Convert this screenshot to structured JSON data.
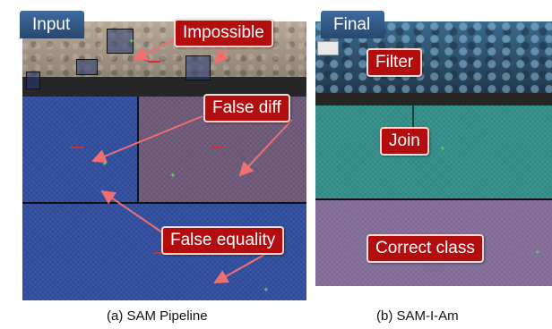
{
  "panels": {
    "a": {
      "tab": "Input",
      "caption": "(a) SAM Pipeline"
    },
    "b": {
      "tab": "Final",
      "caption": "(b) SAM-I-Am"
    }
  },
  "annotations": {
    "impossible": "Impossible",
    "false_diff": "False diff",
    "false_equality": "False equality",
    "filter": "Filter",
    "join": "Join",
    "correct_class": "Correct class"
  },
  "colors": {
    "label_red": "#b20e10",
    "tab_blue": "#3f6b9e",
    "arrow": "#f07070"
  }
}
